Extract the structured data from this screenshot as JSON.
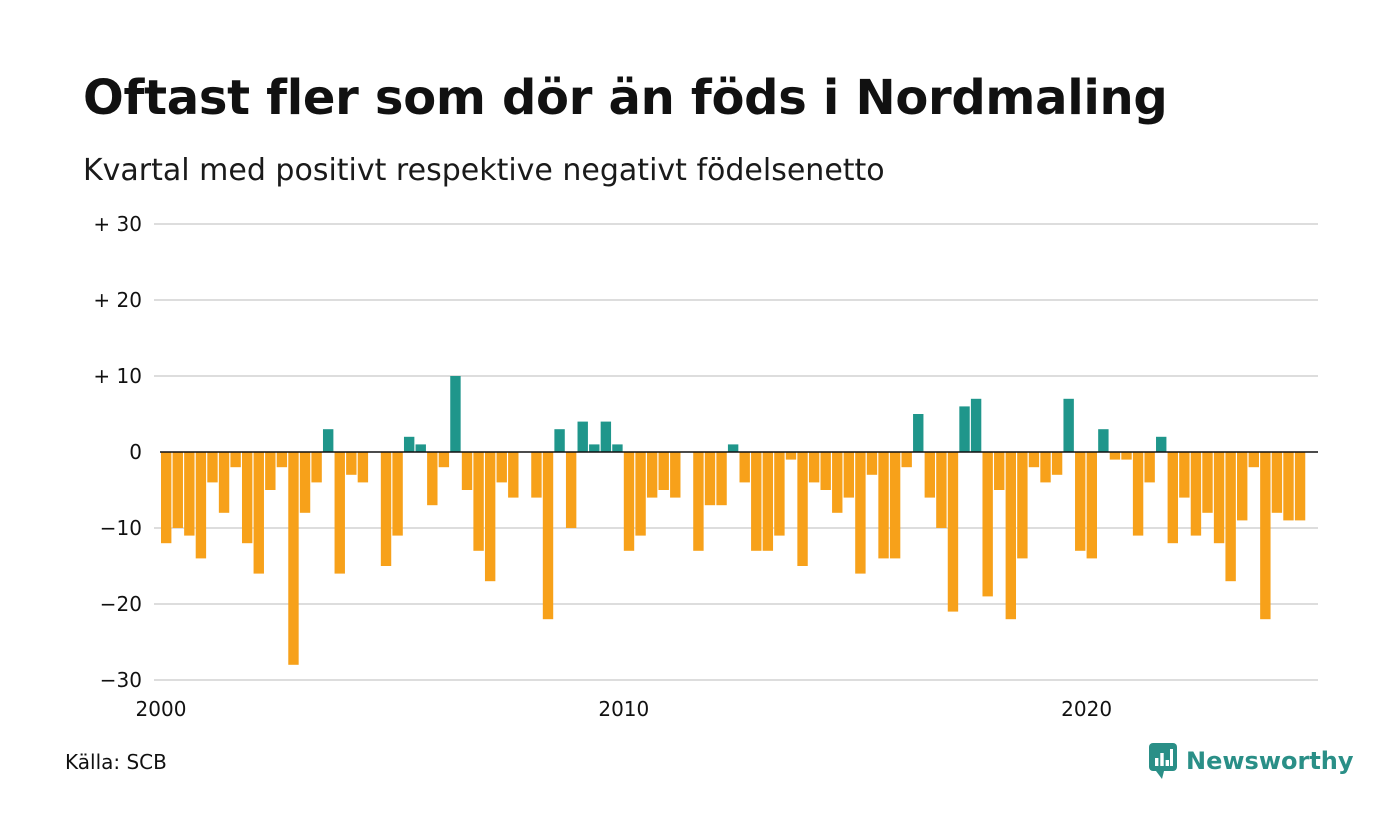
{
  "title": "Oftast fler som dör än föds i Nordmaling",
  "subtitle": "Kvartal med positivt respektive negativt födelsenetto",
  "source": "Källa: SCB",
  "brand": {
    "name": "Newsworthy",
    "icon": "newsworthy-logo-icon",
    "color": "#2a8f87"
  },
  "colors": {
    "positive": "#1f968b",
    "negative": "#f7a11a",
    "grid": "#dddddd",
    "zero_line": "#111111"
  },
  "chart_data": {
    "type": "bar",
    "title": "Oftast fler som dör än föds i Nordmaling",
    "subtitle": "Kvartal med positivt respektive negativt födelsenetto",
    "xlabel": "",
    "ylabel": "",
    "x_unit": "quarter",
    "x_start": "2000 Q1",
    "ylim": [
      -30,
      30
    ],
    "yticks": [
      {
        "value": 30,
        "label": "+ 30"
      },
      {
        "value": 20,
        "label": "+ 20"
      },
      {
        "value": 10,
        "label": "+ 10"
      },
      {
        "value": 0,
        "label": "0"
      },
      {
        "value": -10,
        "label": "−10"
      },
      {
        "value": -20,
        "label": "−20"
      },
      {
        "value": -30,
        "label": "−30"
      }
    ],
    "xticks": [
      {
        "value": 2000,
        "label": "2000"
      },
      {
        "value": 2010,
        "label": "2010"
      },
      {
        "value": 2020,
        "label": "2020"
      }
    ],
    "grid": true,
    "legend": "none",
    "values": [
      -12,
      -10,
      -11,
      -14,
      -4,
      -8,
      -2,
      -12,
      -16,
      -5,
      -2,
      -28,
      -8,
      -4,
      3,
      -16,
      -3,
      -4,
      0,
      -15,
      -11,
      2,
      1,
      -7,
      -2,
      10,
      -5,
      -13,
      -17,
      -4,
      -6,
      0,
      -6,
      -22,
      3,
      -10,
      4,
      1,
      4,
      1,
      -13,
      -11,
      -6,
      -5,
      -6,
      0,
      -13,
      -7,
      -7,
      1,
      -4,
      -13,
      -13,
      -11,
      -1,
      -15,
      -4,
      -5,
      -8,
      -6,
      -16,
      -3,
      -14,
      -14,
      -2,
      5,
      -6,
      -10,
      -21,
      6,
      7,
      -19,
      -5,
      -22,
      -14,
      -2,
      -4,
      -3,
      7,
      -13,
      -14,
      3,
      -1,
      -1,
      -11,
      -4,
      2,
      -12,
      -6,
      -11,
      -8,
      -12,
      -17,
      -9,
      -2,
      -22,
      -8,
      -9,
      -9
    ]
  }
}
